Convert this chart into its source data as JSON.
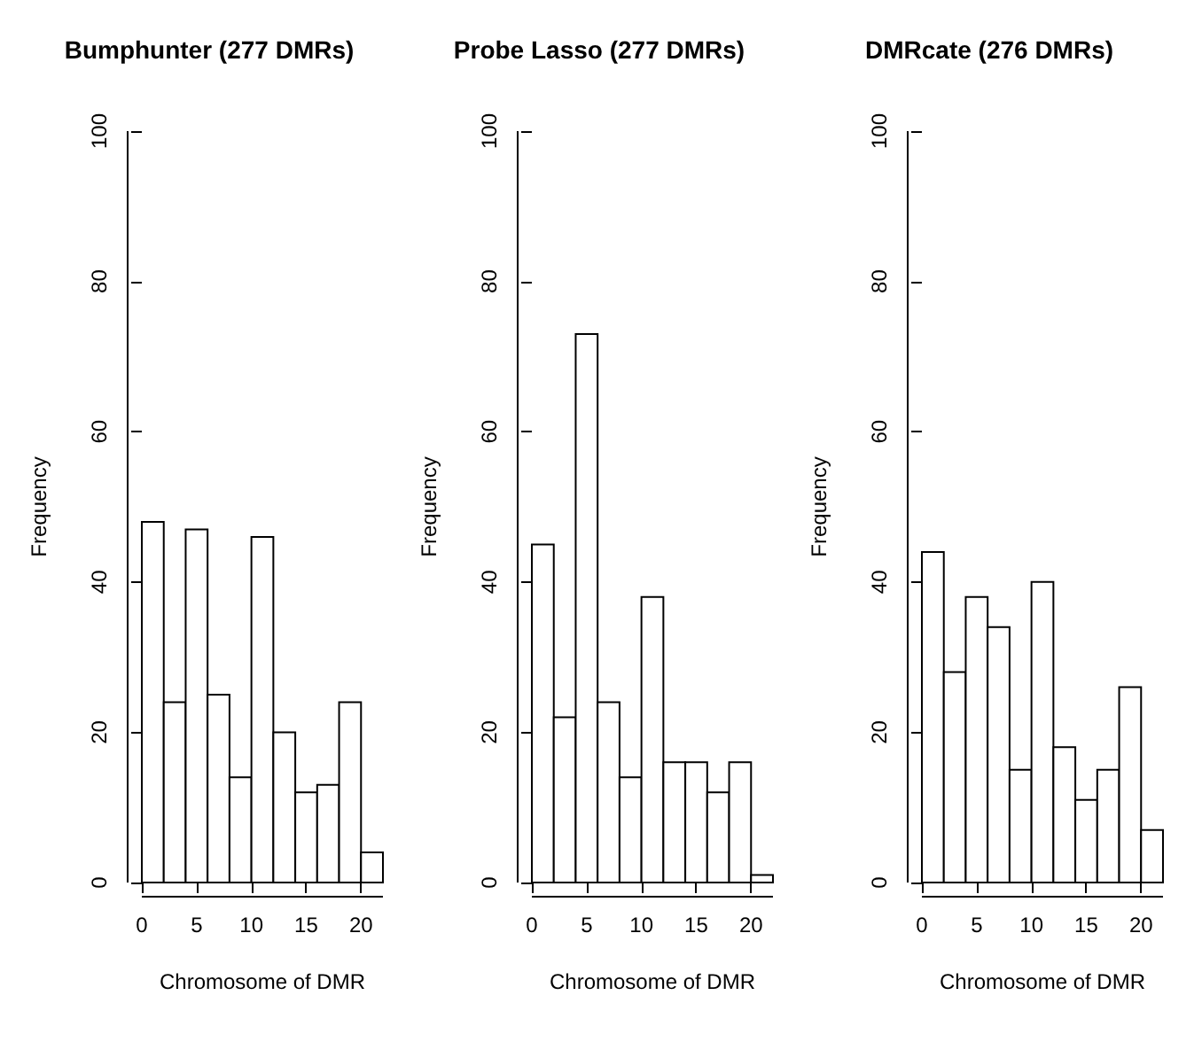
{
  "chart_data": [
    {
      "type": "histogram",
      "title": "Bumphunter (277 DMRs)",
      "xlabel": "Chromosome of DMR",
      "ylabel": "Frequency",
      "bins": [
        0,
        2,
        4,
        6,
        8,
        10,
        12,
        14,
        16,
        18,
        20,
        22
      ],
      "values": [
        48,
        24,
        47,
        25,
        14,
        46,
        20,
        12,
        13,
        24,
        4
      ],
      "color": "#ffffff",
      "xlim": [
        0,
        22
      ],
      "xticks": [
        0,
        5,
        10,
        15,
        20
      ],
      "ylim": [
        0,
        100
      ],
      "yticks": [
        0,
        20,
        40,
        60,
        80,
        100
      ]
    },
    {
      "type": "histogram",
      "title": "Probe Lasso (277 DMRs)",
      "xlabel": "Chromosome of DMR",
      "ylabel": "Frequency",
      "bins": [
        0,
        2,
        4,
        6,
        8,
        10,
        12,
        14,
        16,
        18,
        20,
        22
      ],
      "values": [
        45,
        22,
        73,
        24,
        14,
        38,
        16,
        16,
        12,
        16,
        1
      ],
      "color": "#ffffff",
      "xlim": [
        0,
        22
      ],
      "xticks": [
        0,
        5,
        10,
        15,
        20
      ],
      "ylim": [
        0,
        100
      ],
      "yticks": [
        0,
        20,
        40,
        60,
        80,
        100
      ]
    },
    {
      "type": "histogram",
      "title": "DMRcate (276 DMRs)",
      "xlabel": "Chromosome of DMR",
      "ylabel": "Frequency",
      "bins": [
        0,
        2,
        4,
        6,
        8,
        10,
        12,
        14,
        16,
        18,
        20,
        22
      ],
      "values": [
        44,
        28,
        38,
        34,
        15,
        40,
        18,
        11,
        15,
        26,
        7
      ],
      "color": "#ffffff",
      "xlim": [
        0,
        22
      ],
      "xticks": [
        0,
        5,
        10,
        15,
        20
      ],
      "ylim": [
        0,
        100
      ],
      "yticks": [
        0,
        20,
        40,
        60,
        80,
        100
      ]
    }
  ]
}
